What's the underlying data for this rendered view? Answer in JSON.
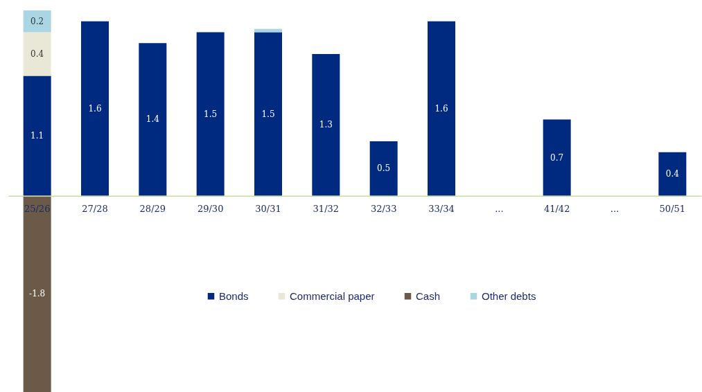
{
  "chart_data": {
    "type": "bar",
    "stacked": true,
    "categories": [
      "25/26",
      "27/28",
      "28/29",
      "29/30",
      "30/31",
      "31/32",
      "32/33",
      "33/34",
      "...",
      "41/42",
      "...",
      "50/51"
    ],
    "series": [
      {
        "name": "Bonds",
        "color": "#002a7f",
        "values": [
          1.1,
          1.6,
          1.4,
          1.5,
          1.5,
          1.3,
          0.5,
          1.6,
          null,
          0.7,
          null,
          0.4
        ],
        "value_labels": [
          "1.1",
          "1.6",
          "1.4",
          "1.5",
          "1.5",
          "1.3",
          "0.5",
          "1.6",
          null,
          "0.7",
          null,
          "0.4"
        ]
      },
      {
        "name": "Commercial paper",
        "color": "#e9e8d6",
        "values": [
          0.4,
          null,
          null,
          null,
          null,
          null,
          null,
          null,
          null,
          null,
          null,
          null
        ],
        "value_labels": [
          "0.4",
          null,
          null,
          null,
          null,
          null,
          null,
          null,
          null,
          null,
          null,
          null
        ]
      },
      {
        "name": "Cash",
        "color": "#6b5a48",
        "values": [
          -1.8,
          null,
          null,
          null,
          null,
          null,
          null,
          null,
          null,
          null,
          null,
          null
        ],
        "value_labels": [
          "-1.8",
          null,
          null,
          null,
          null,
          null,
          null,
          null,
          null,
          null,
          null,
          null
        ]
      },
      {
        "name": "Other debts",
        "color": "#aad6e3",
        "values": [
          0.2,
          null,
          null,
          null,
          0.03,
          null,
          null,
          null,
          null,
          null,
          null,
          null
        ],
        "value_labels": [
          "0.2",
          null,
          null,
          null,
          null,
          null,
          null,
          null,
          null,
          null,
          null,
          null
        ]
      }
    ],
    "legend": "bottom",
    "grid": false
  }
}
